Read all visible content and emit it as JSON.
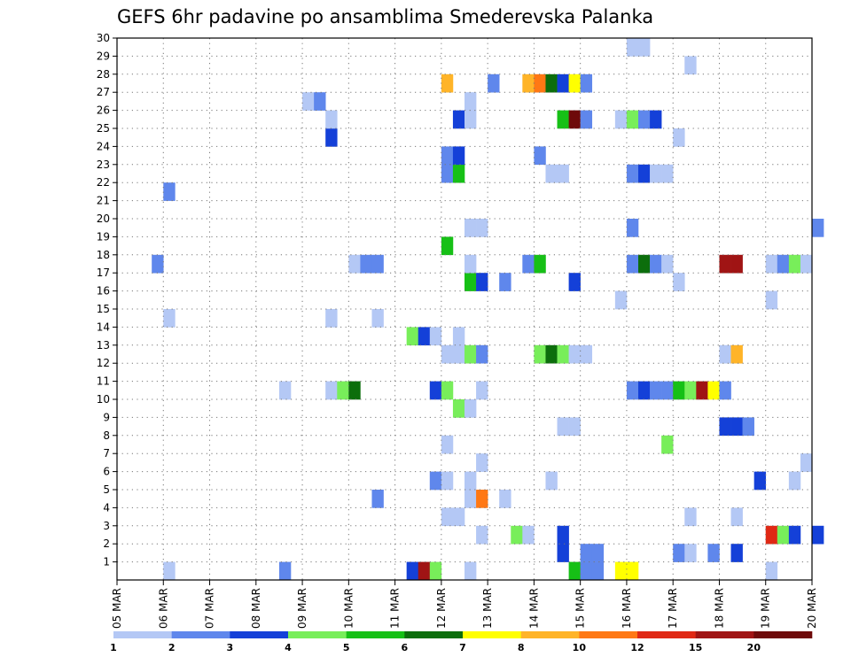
{
  "chart_data": {
    "type": "heatmap",
    "title": "GEFS 6hr padavine po ansamblima Smederevska Palanka",
    "xlabel": "",
    "ylabel": "",
    "x_ticks": [
      "05 MAR",
      "06 MAR",
      "07 MAR",
      "08 MAR",
      "09 MAR",
      "10 MAR",
      "11 MAR",
      "12 MAR",
      "13 MAR",
      "14 MAR",
      "15 MAR",
      "16 MAR",
      "17 MAR",
      "18 MAR",
      "19 MAR",
      "20 MAR"
    ],
    "y_ticks": [
      "1",
      "2",
      "3",
      "4",
      "5",
      "6",
      "7",
      "8",
      "9",
      "10",
      "11",
      "12",
      "13",
      "14",
      "15",
      "16",
      "17",
      "18",
      "19",
      "20",
      "21",
      "22",
      "23",
      "24",
      "25",
      "26",
      "27",
      "28",
      "29",
      "30"
    ],
    "xlim": [
      "05 MAR 00Z",
      "20 MAR 00Z"
    ],
    "time_step": "6hr",
    "ylim": [
      0,
      30
    ],
    "grid": true,
    "legend": {
      "position": "bottom",
      "labels": [
        "1",
        "2",
        "3",
        "4",
        "5",
        "6",
        "7",
        "8",
        "10",
        "12",
        "15",
        "20"
      ],
      "colors": [
        "#b4c8f5",
        "#5f87ec",
        "#1440d8",
        "#78ee5a",
        "#16c016",
        "#0c6e0c",
        "#ffff00",
        "#ffb428",
        "#ff7814",
        "#e02814",
        "#a01414",
        "#6e0a0a"
      ]
    },
    "level_colors": {
      "1": "#b4c8f5",
      "2": "#5f87ec",
      "3": "#1440d8",
      "4": "#78ee5a",
      "5": "#16c016",
      "6": "#0c6e0c",
      "7": "#ffff00",
      "8": "#ffb428",
      "10": "#ff7814",
      "12": "#e02814",
      "15": "#a01414",
      "20": "#6e0a0a"
    },
    "cells_note": "each cell: [member, time (day.fraction, 5.0 = 05 MAR 00Z), precipitation level]",
    "cells": [
      [
        0,
        6.0,
        1
      ],
      [
        0,
        8.5,
        2
      ],
      [
        0,
        11.25,
        3
      ],
      [
        0,
        11.5,
        15
      ],
      [
        0,
        11.75,
        4
      ],
      [
        0,
        12.5,
        1
      ],
      [
        0,
        14.75,
        5
      ],
      [
        0,
        15.0,
        2
      ],
      [
        0,
        15.25,
        2
      ],
      [
        0,
        15.75,
        7
      ],
      [
        0,
        16.0,
        7
      ],
      [
        0,
        19.0,
        1
      ],
      [
        1,
        14.5,
        3
      ],
      [
        1,
        15.0,
        2
      ],
      [
        1,
        15.25,
        2
      ],
      [
        1,
        17.0,
        2
      ],
      [
        1,
        17.25,
        1
      ],
      [
        1,
        17.75,
        2
      ],
      [
        1,
        18.25,
        3
      ],
      [
        2,
        12.75,
        1
      ],
      [
        2,
        13.5,
        4
      ],
      [
        2,
        13.75,
        1
      ],
      [
        2,
        14.5,
        3
      ],
      [
        2,
        19.0,
        12
      ],
      [
        2,
        19.25,
        4
      ],
      [
        2,
        19.5,
        3
      ],
      [
        2,
        20.0,
        3
      ],
      [
        3,
        12.0,
        1
      ],
      [
        3,
        12.25,
        1
      ],
      [
        3,
        17.25,
        1
      ],
      [
        3,
        18.25,
        1
      ],
      [
        4,
        10.5,
        2
      ],
      [
        4,
        12.5,
        1
      ],
      [
        4,
        12.75,
        10
      ],
      [
        4,
        13.25,
        1
      ],
      [
        5,
        11.75,
        2
      ],
      [
        5,
        12.0,
        1
      ],
      [
        5,
        12.5,
        1
      ],
      [
        5,
        14.25,
        1
      ],
      [
        5,
        18.75,
        3
      ],
      [
        5,
        19.5,
        1
      ],
      [
        6,
        12.75,
        1
      ],
      [
        6,
        19.75,
        1
      ],
      [
        7,
        12.0,
        1
      ],
      [
        7,
        16.75,
        4
      ],
      [
        8,
        14.5,
        1
      ],
      [
        8,
        14.75,
        1
      ],
      [
        8,
        18.0,
        3
      ],
      [
        8,
        18.25,
        3
      ],
      [
        8,
        18.5,
        2
      ],
      [
        9,
        12.25,
        4
      ],
      [
        9,
        12.5,
        1
      ],
      [
        10,
        8.5,
        1
      ],
      [
        10,
        9.5,
        1
      ],
      [
        10,
        9.75,
        4
      ],
      [
        10,
        10.0,
        6
      ],
      [
        10,
        11.75,
        3
      ],
      [
        10,
        12.0,
        4
      ],
      [
        10,
        12.75,
        1
      ],
      [
        10,
        16.0,
        2
      ],
      [
        10,
        16.25,
        3
      ],
      [
        10,
        16.5,
        2
      ],
      [
        10,
        16.75,
        2
      ],
      [
        10,
        17.0,
        5
      ],
      [
        10,
        17.25,
        4
      ],
      [
        10,
        17.5,
        15
      ],
      [
        10,
        17.75,
        7
      ],
      [
        10,
        18.0,
        2
      ],
      [
        12,
        12.0,
        1
      ],
      [
        12,
        12.25,
        1
      ],
      [
        12,
        12.5,
        4
      ],
      [
        12,
        12.75,
        2
      ],
      [
        12,
        14.0,
        4
      ],
      [
        12,
        14.25,
        6
      ],
      [
        12,
        14.5,
        4
      ],
      [
        12,
        14.75,
        1
      ],
      [
        12,
        15.0,
        1
      ],
      [
        12,
        18.0,
        1
      ],
      [
        12,
        18.25,
        8
      ],
      [
        13,
        11.25,
        4
      ],
      [
        13,
        11.5,
        3
      ],
      [
        13,
        11.75,
        1
      ],
      [
        13,
        12.25,
        1
      ],
      [
        14,
        6.0,
        1
      ],
      [
        14,
        9.5,
        1
      ],
      [
        14,
        10.5,
        1
      ],
      [
        15,
        15.75,
        1
      ],
      [
        15,
        19.0,
        1
      ],
      [
        16,
        12.5,
        5
      ],
      [
        16,
        12.75,
        3
      ],
      [
        16,
        13.25,
        2
      ],
      [
        16,
        14.75,
        3
      ],
      [
        16,
        17.0,
        1
      ],
      [
        17,
        5.75,
        2
      ],
      [
        17,
        10.0,
        1
      ],
      [
        17,
        10.25,
        2
      ],
      [
        17,
        10.5,
        2
      ],
      [
        17,
        12.5,
        1
      ],
      [
        17,
        13.75,
        2
      ],
      [
        17,
        14.0,
        5
      ],
      [
        17,
        16.0,
        2
      ],
      [
        17,
        16.25,
        6
      ],
      [
        17,
        16.5,
        2
      ],
      [
        17,
        16.75,
        1
      ],
      [
        17,
        18.0,
        15
      ],
      [
        17,
        18.25,
        15
      ],
      [
        17,
        19.0,
        1
      ],
      [
        17,
        19.25,
        2
      ],
      [
        17,
        19.5,
        4
      ],
      [
        17,
        19.75,
        1
      ],
      [
        18,
        12.0,
        5
      ],
      [
        19,
        12.5,
        1
      ],
      [
        19,
        12.75,
        1
      ],
      [
        19,
        16.0,
        2
      ],
      [
        19,
        20.0,
        2
      ],
      [
        21,
        6.0,
        2
      ],
      [
        22,
        12.0,
        2
      ],
      [
        22,
        12.25,
        5
      ],
      [
        22,
        14.25,
        1
      ],
      [
        22,
        14.5,
        1
      ],
      [
        22,
        16.0,
        2
      ],
      [
        22,
        16.25,
        3
      ],
      [
        22,
        16.5,
        1
      ],
      [
        22,
        16.75,
        1
      ],
      [
        23,
        12.0,
        2
      ],
      [
        23,
        12.25,
        3
      ],
      [
        23,
        14.0,
        2
      ],
      [
        24,
        9.5,
        3
      ],
      [
        24,
        17.0,
        1
      ],
      [
        25,
        9.5,
        1
      ],
      [
        25,
        12.25,
        3
      ],
      [
        25,
        12.5,
        1
      ],
      [
        25,
        14.5,
        5
      ],
      [
        25,
        14.75,
        20
      ],
      [
        25,
        15.0,
        2
      ],
      [
        25,
        15.75,
        1
      ],
      [
        25,
        16.0,
        4
      ],
      [
        25,
        16.25,
        2
      ],
      [
        25,
        16.5,
        3
      ],
      [
        26,
        9.0,
        1
      ],
      [
        26,
        9.25,
        2
      ],
      [
        26,
        12.5,
        1
      ],
      [
        27,
        12.0,
        8
      ],
      [
        27,
        13.0,
        2
      ],
      [
        27,
        13.75,
        8
      ],
      [
        27,
        14.0,
        10
      ],
      [
        27,
        14.25,
        6
      ],
      [
        27,
        14.5,
        3
      ],
      [
        27,
        14.75,
        7
      ],
      [
        27,
        15.0,
        2
      ],
      [
        28,
        17.25,
        1
      ],
      [
        29,
        16.0,
        1
      ],
      [
        29,
        16.25,
        1
      ]
    ]
  }
}
